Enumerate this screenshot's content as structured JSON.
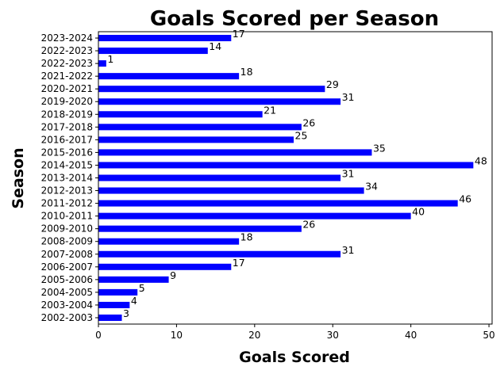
{
  "chart_data": {
    "type": "bar",
    "orientation": "horizontal",
    "title": "Goals Scored per Season",
    "xlabel": "Goals Scored",
    "ylabel": "Season",
    "xlim": [
      0,
      50.4
    ],
    "xticks": [
      0,
      10,
      20,
      30,
      40,
      50
    ],
    "grid": false,
    "bar_color": "#0000ff",
    "categories": [
      "2002-2003",
      "2003-2004",
      "2004-2005",
      "2005-2006",
      "2006-2007",
      "2007-2008",
      "2008-2009",
      "2009-2010",
      "2010-2011",
      "2011-2012",
      "2012-2013",
      "2013-2014",
      "2014-2015",
      "2015-2016",
      "2016-2017",
      "2017-2018",
      "2018-2019",
      "2019-2020",
      "2020-2021",
      "2021-2022",
      "2022-2023",
      "2022-2023",
      "2023-2024"
    ],
    "values": [
      3,
      4,
      5,
      9,
      17,
      31,
      18,
      26,
      40,
      46,
      34,
      31,
      48,
      35,
      25,
      26,
      21,
      31,
      29,
      18,
      1,
      14,
      17
    ]
  }
}
